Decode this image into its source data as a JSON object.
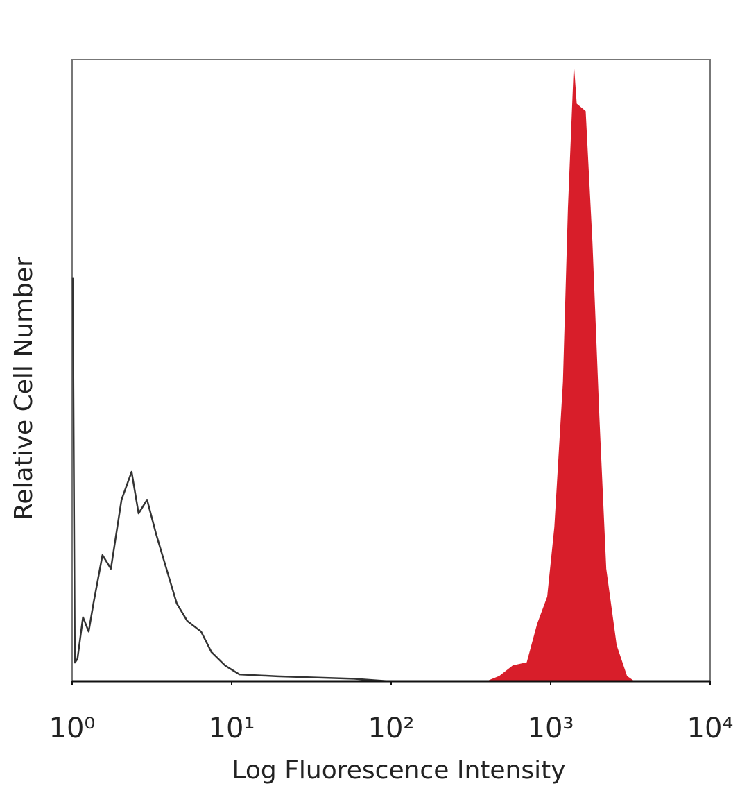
{
  "chart_data": {
    "type": "histogram-overlay",
    "x_label": "Log Fluorescence Intensity",
    "y_label": "Relative Cell Number",
    "log_x": true,
    "xlim": [
      1,
      10000
    ],
    "xticks": [
      {
        "value": 1,
        "label": "10⁰"
      },
      {
        "value": 10,
        "label": "10¹"
      },
      {
        "value": 100,
        "label": "10²"
      },
      {
        "value": 1000,
        "label": "10³"
      },
      {
        "value": 10000,
        "label": "10⁴"
      }
    ],
    "ylim": [
      0,
      100
    ],
    "series": [
      {
        "color": "#333333",
        "filled": false,
        "x": [
          1.01,
          1.04,
          1.08,
          1.17,
          1.27,
          1.36,
          1.55,
          1.75,
          2.04,
          2.36,
          2.61,
          2.95,
          3.36,
          3.9,
          4.53,
          5.27,
          6.43,
          7.47,
          9.13,
          11.2,
          19.4,
          58.2,
          96
        ],
        "values": [
          65,
          3,
          3.6,
          10.3,
          8,
          12.5,
          20.3,
          18.1,
          29.2,
          33.7,
          27,
          29.2,
          23.7,
          18.1,
          12.5,
          9.7,
          8,
          4.7,
          2.5,
          1.1,
          0.8,
          0.4,
          0
        ]
      },
      {
        "color": "#d81e2a",
        "filled": true,
        "x": [
          400,
          477,
          580,
          711,
          826,
          956,
          1060,
          1200,
          1290,
          1400,
          1450,
          1650,
          1820,
          2010,
          2220,
          2580,
          3000,
          3330
        ],
        "values": [
          0,
          0.8,
          2.5,
          3,
          9.2,
          13.6,
          24.8,
          48.2,
          76.1,
          98.4,
          92.9,
          91.7,
          70.5,
          42.6,
          18.1,
          5.8,
          0.8,
          0
        ]
      }
    ]
  }
}
